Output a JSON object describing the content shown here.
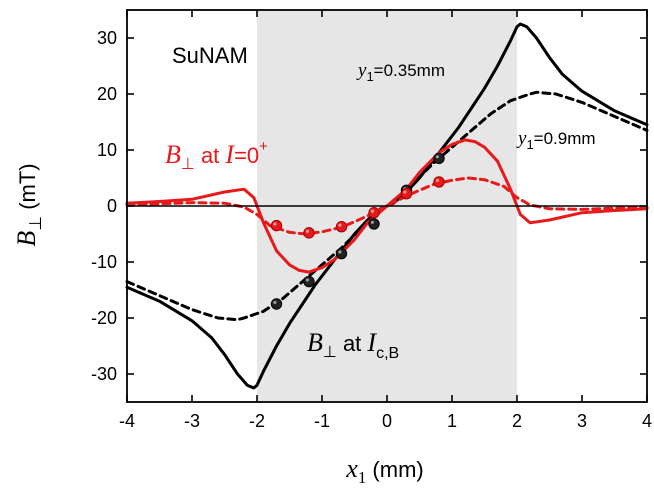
{
  "chart_data": {
    "type": "line",
    "xlabel": {
      "var": "x",
      "sub": "1",
      "unit": " (mm)"
    },
    "ylabel": {
      "var": "B",
      "sub": "⊥",
      "unit": " (mT)"
    },
    "xlim": [
      -4,
      4
    ],
    "ylim": [
      -35,
      35
    ],
    "xticks": [
      -4,
      -3,
      -2,
      -1,
      0,
      1,
      2,
      3,
      4
    ],
    "yticks": [
      -30,
      -20,
      -10,
      0,
      10,
      20,
      30
    ],
    "xtick_labels": [
      "-4",
      "-3",
      "-2",
      "-1",
      "0",
      "1",
      "2",
      "3",
      "4"
    ],
    "ytick_labels": [
      "-30",
      "-20",
      "-10",
      "0",
      "10",
      "20",
      "30"
    ],
    "shaded_region": [
      -2,
      2
    ],
    "grid": false,
    "legend": "none",
    "annotations": {
      "sample": "SuNAM",
      "y1_035": {
        "var": "y",
        "sub": "1",
        "rest": "=0.35mm"
      },
      "y1_09": {
        "var": "y",
        "sub": "1",
        "rest": "=0.9mm"
      },
      "red_label": {
        "var": "B",
        "sub": "⊥",
        "at": " at ",
        "cur": "I",
        "eq": "=0",
        "sup": "+"
      },
      "black_label": {
        "var": "B",
        "sub": "⊥",
        "at": " at ",
        "cur": "I",
        "curSub": "c,B"
      }
    },
    "series": [
      {
        "color": "#000000",
        "style": "solid",
        "x": [
          -4,
          -3.5,
          -3,
          -2.7,
          -2.5,
          -2.3,
          -2.15,
          -2.05,
          -2,
          -1.9,
          -1.7,
          -1.5,
          -1.3,
          -1.1,
          -0.9,
          -0.7,
          -0.5,
          -0.3,
          -0.1,
          0,
          0.1,
          0.3,
          0.5,
          0.7,
          0.9,
          1.1,
          1.3,
          1.5,
          1.7,
          1.9,
          2,
          2.05,
          2.15,
          2.3,
          2.5,
          2.7,
          3,
          3.5,
          4
        ],
        "y": [
          -14.5,
          -17,
          -20.5,
          -23.5,
          -26.5,
          -30,
          -32,
          -32.5,
          -32,
          -29.5,
          -25,
          -21,
          -17.5,
          -14,
          -11,
          -8,
          -5,
          -2.5,
          -0.5,
          0,
          0.5,
          2.5,
          5,
          8,
          11,
          14,
          17.5,
          21,
          25,
          29.5,
          32,
          32.5,
          32,
          30,
          26.5,
          23.5,
          20.5,
          17,
          14.5
        ]
      },
      {
        "color": "#000000",
        "style": "dashed",
        "x": [
          -4,
          -3.5,
          -3,
          -2.6,
          -2.3,
          -2.2,
          -2.1,
          -1.9,
          -1.6,
          -1.3,
          -1,
          -0.7,
          -0.4,
          -0.1,
          0,
          0.1,
          0.4,
          0.7,
          1,
          1.3,
          1.6,
          1.9,
          2.1,
          2.2,
          2.3,
          2.6,
          3,
          3.5,
          4
        ],
        "y": [
          -13.5,
          -16,
          -18.5,
          -20,
          -20.3,
          -20,
          -19.6,
          -18.8,
          -16.5,
          -13.5,
          -10.5,
          -7.5,
          -4,
          -0.8,
          0,
          0.8,
          4,
          7.5,
          10.5,
          13.5,
          16.5,
          18.8,
          19.6,
          20,
          20.3,
          20,
          18.5,
          16,
          13.5
        ]
      },
      {
        "color": "#e8191b",
        "style": "solid",
        "x": [
          -4,
          -3.5,
          -3,
          -2.5,
          -2.2,
          -2.05,
          -1.9,
          -1.7,
          -1.5,
          -1.35,
          -1.2,
          -1,
          -0.8,
          -0.5,
          -0.3,
          -0.1,
          0,
          0.1,
          0.3,
          0.5,
          0.8,
          1,
          1.2,
          1.35,
          1.5,
          1.7,
          1.9,
          2.05,
          2.2,
          2.5,
          3,
          3.5,
          4
        ],
        "y": [
          0.5,
          0.8,
          1.2,
          2.5,
          3,
          1.5,
          -3,
          -8,
          -10.5,
          -11.5,
          -11.8,
          -11,
          -9.5,
          -6,
          -3,
          -1,
          0,
          1,
          3,
          6,
          9.5,
          11,
          11.8,
          11.5,
          10.5,
          8,
          3,
          -1.5,
          -3,
          -2.5,
          -1.2,
          -0.8,
          -0.5
        ]
      },
      {
        "color": "#e8191b",
        "style": "dashed",
        "x": [
          -4,
          -3.5,
          -3,
          -2.5,
          -2.2,
          -2,
          -1.8,
          -1.5,
          -1.25,
          -1,
          -0.7,
          -0.4,
          -0.2,
          0,
          0.2,
          0.4,
          0.7,
          1,
          1.25,
          1.5,
          1.8,
          2,
          2.2,
          2.5,
          3,
          3.5,
          4
        ],
        "y": [
          0.2,
          0.4,
          0.6,
          0.5,
          -0.2,
          -1.5,
          -3.5,
          -4.7,
          -5,
          -4.6,
          -3.8,
          -2.3,
          -1.2,
          0,
          1.2,
          2.3,
          3.8,
          4.6,
          5,
          4.7,
          3.5,
          1.5,
          0.2,
          -0.5,
          -0.6,
          -0.4,
          -0.2
        ]
      }
    ],
    "markers": [
      {
        "color": "#222222",
        "points": [
          [
            -1.7,
            -17.5
          ],
          [
            -1.2,
            -13.5
          ],
          [
            -0.7,
            -8.5
          ],
          [
            -0.2,
            -3.2
          ],
          [
            0.3,
            2.8
          ],
          [
            0.8,
            8.5
          ]
        ]
      },
      {
        "color": "#e8191b",
        "points": [
          [
            -1.7,
            -3.5
          ],
          [
            -1.2,
            -4.8
          ],
          [
            -0.7,
            -3.7
          ],
          [
            -0.2,
            -1.2
          ],
          [
            0.3,
            2.2
          ],
          [
            0.8,
            4.3
          ]
        ]
      }
    ]
  }
}
